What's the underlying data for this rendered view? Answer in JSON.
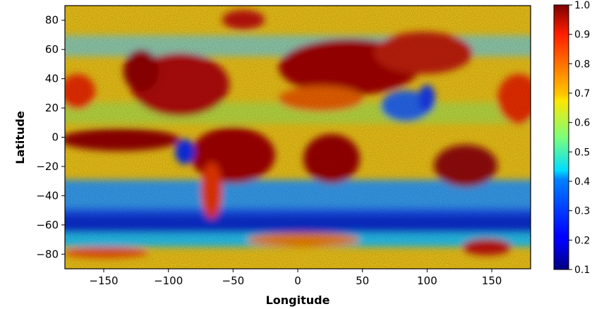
{
  "chart_data": {
    "type": "heatmap",
    "title": "",
    "xlabel": "Longitude",
    "ylabel": "Latitude",
    "xlim": [
      -180,
      180
    ],
    "ylim": [
      -90,
      90
    ],
    "x_ticks": [
      -150,
      -100,
      -50,
      0,
      50,
      100,
      150
    ],
    "y_ticks": [
      80,
      60,
      40,
      20,
      0,
      -20,
      -40,
      -60,
      -80
    ],
    "x_tick_labels": [
      "−150",
      "−100",
      "−50",
      "0",
      "50",
      "100",
      "150"
    ],
    "y_tick_labels": [
      "80",
      "60",
      "40",
      "20",
      "0",
      "−20",
      "−40",
      "−60",
      "−80"
    ],
    "colorbar": {
      "min": 0.1,
      "max": 1.0,
      "colormap": "jet",
      "ticks": [
        1.0,
        0.9,
        0.8,
        0.7,
        0.6,
        0.5,
        0.4,
        0.3,
        0.2,
        0.1
      ],
      "tick_labels": [
        "1.0",
        "0.9",
        "0.8",
        "0.7",
        "0.6",
        "0.5",
        "0.4",
        "0.3",
        "0.2",
        "0.1"
      ]
    },
    "grid": false,
    "field_description": "global gridded field over longitude and latitude"
  }
}
